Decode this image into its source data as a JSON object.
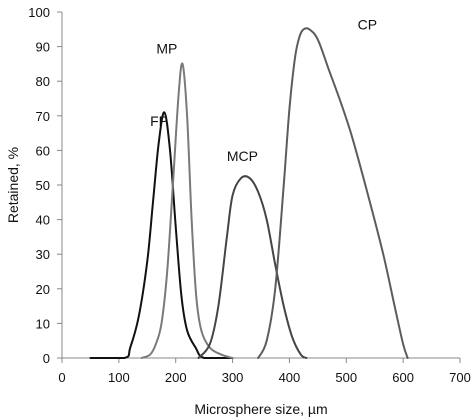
{
  "chart_data": {
    "type": "line",
    "title": "",
    "xlabel": "Microsphere size, µm",
    "ylabel": "Retained, %",
    "xlim": [
      0,
      700
    ],
    "ylim": [
      0,
      100
    ],
    "xticks": [
      0,
      100,
      200,
      300,
      400,
      500,
      600,
      700
    ],
    "yticks": [
      0,
      10,
      20,
      30,
      40,
      50,
      60,
      70,
      80,
      90,
      100
    ],
    "grid": false,
    "legend": "none",
    "series": [
      {
        "name": "FP",
        "color": "#111111",
        "points": [
          [
            50,
            0
          ],
          [
            110,
            0
          ],
          [
            120,
            3
          ],
          [
            135,
            12
          ],
          [
            150,
            28
          ],
          [
            160,
            45
          ],
          [
            170,
            62
          ],
          [
            180,
            71
          ],
          [
            190,
            60
          ],
          [
            200,
            38
          ],
          [
            210,
            18
          ],
          [
            220,
            8
          ],
          [
            235,
            3
          ],
          [
            250,
            0
          ],
          [
            300,
            0
          ]
        ]
      },
      {
        "name": "MP",
        "color": "#7a7a7a",
        "points": [
          [
            140,
            0
          ],
          [
            155,
            1
          ],
          [
            165,
            4
          ],
          [
            175,
            10
          ],
          [
            185,
            25
          ],
          [
            195,
            50
          ],
          [
            205,
            76
          ],
          [
            212,
            85
          ],
          [
            220,
            70
          ],
          [
            228,
            40
          ],
          [
            236,
            18
          ],
          [
            245,
            8
          ],
          [
            260,
            3
          ],
          [
            280,
            1
          ],
          [
            300,
            0
          ]
        ]
      },
      {
        "name": "MCP",
        "color": "#454545",
        "points": [
          [
            240,
            0
          ],
          [
            260,
            4
          ],
          [
            275,
            15
          ],
          [
            290,
            35
          ],
          [
            300,
            47
          ],
          [
            315,
            52
          ],
          [
            330,
            52
          ],
          [
            345,
            48
          ],
          [
            360,
            40
          ],
          [
            375,
            27
          ],
          [
            390,
            15
          ],
          [
            405,
            6
          ],
          [
            420,
            1
          ],
          [
            430,
            0
          ]
        ]
      },
      {
        "name": "CP",
        "color": "#5c5c5c",
        "points": [
          [
            345,
            0
          ],
          [
            360,
            5
          ],
          [
            375,
            20
          ],
          [
            390,
            50
          ],
          [
            400,
            72
          ],
          [
            410,
            87
          ],
          [
            418,
            93
          ],
          [
            425,
            95
          ],
          [
            435,
            95
          ],
          [
            450,
            92
          ],
          [
            470,
            83
          ],
          [
            490,
            74
          ],
          [
            510,
            64
          ],
          [
            540,
            46
          ],
          [
            565,
            30
          ],
          [
            585,
            15
          ],
          [
            600,
            4
          ],
          [
            608,
            0
          ]
        ]
      }
    ],
    "labels": [
      {
        "text": "FP",
        "x": 155,
        "y": 67
      },
      {
        "text": "MP",
        "x": 166,
        "y": 88
      },
      {
        "text": "MCP",
        "x": 290,
        "y": 57
      },
      {
        "text": "CP",
        "x": 520,
        "y": 95
      }
    ]
  }
}
